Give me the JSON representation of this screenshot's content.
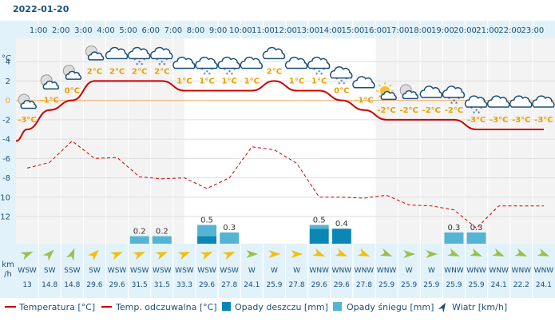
{
  "date": "2022-01-20",
  "hours": [
    "1:00",
    "2:00",
    "3:00",
    "4:00",
    "5:00",
    "6:00",
    "7:00",
    "8:00",
    "9:00",
    "10:00",
    "11:00",
    "12:00",
    "13:00",
    "14:00",
    "15:00",
    "16:00",
    "17:00",
    "18:00",
    "19:00",
    "20:00",
    "21:00",
    "22:00",
    "23:00"
  ],
  "y_unit": "°C",
  "y_ticks": [
    "4",
    "2",
    "0",
    "-2",
    "-4",
    "-6",
    "-8",
    "-10",
    "-12"
  ],
  "wind_unit_line1": "km",
  "wind_unit_line2": "/h",
  "chart_data": {
    "type": "line",
    "ylim": [
      -14.8,
      6.4
    ],
    "temperature": [
      -3,
      -1,
      0,
      2,
      2,
      2,
      2,
      1,
      1,
      1,
      1,
      2,
      1,
      1,
      0,
      -1,
      -2,
      -2,
      -2,
      -2,
      -3,
      -3,
      -3,
      -3
    ],
    "feels_like": [
      -7,
      -6.4,
      -4.2,
      -6,
      -5.9,
      -7.9,
      -8.1,
      -8,
      -9.1,
      -8,
      -4.8,
      -5.1,
      -6.5,
      -10,
      -10,
      -10.1,
      -9.8,
      -10.8,
      -10.9,
      -11.3,
      -13.2,
      -10.9,
      -10.9,
      -10.9
    ],
    "temp_labels": [
      "-3°C",
      "-1°C",
      "0°C",
      "2°C",
      "2°C",
      "2°C",
      "2°C",
      "1°C",
      "1°C",
      "1°C",
      "1°C",
      "2°C",
      "1°C",
      "1°C",
      "0°C",
      "-1°C",
      "-2°C",
      "-2°C",
      "-2°C",
      "-2°C",
      "-3°C",
      "-3°C",
      "-3°C",
      "-3°C"
    ],
    "rain": [
      0,
      0,
      0,
      0,
      0,
      0,
      0,
      0,
      0.2,
      0,
      0,
      0,
      0,
      0.4,
      0.4,
      0,
      0,
      0,
      0,
      0,
      0,
      0,
      0,
      0
    ],
    "snow": [
      0,
      0,
      0,
      0,
      0,
      0.2,
      0.2,
      0,
      0.3,
      0.3,
      0,
      0,
      0,
      0.1,
      0,
      0,
      0,
      0,
      0,
      0.3,
      0.3,
      0,
      0,
      0
    ],
    "precip_labels": [
      "",
      "",
      "",
      "",
      "",
      "0.2",
      "0.2",
      "",
      "0.5",
      "0.3",
      "",
      "",
      "",
      "0.5",
      "0.4",
      "",
      "",
      "",
      "",
      "0.3",
      "0.3",
      "",
      "",
      ""
    ],
    "series": [
      {
        "name": "Temperatura [°C]",
        "color": "#cc0000"
      },
      {
        "name": "Temp. odczuwalna [°C]",
        "color": "#cc0000"
      },
      {
        "name": "Opady deszczu [mm]",
        "color": "#0a87b4"
      },
      {
        "name": "Opady śniegu [mm]",
        "color": "#55b4d4"
      },
      {
        "name": "Wiatr [km/h]",
        "color": "#1a4f7a"
      }
    ]
  },
  "weather_icons": [
    "moon-cloud",
    "moon-cloud",
    "moon-cloud",
    "moon-cloud",
    "cloud",
    "cloud-snow",
    "cloud-snow",
    "cloud",
    "cloud-snow",
    "cloud-snow",
    "cloud",
    "cloud",
    "cloud",
    "cloud-snow",
    "cloud-snow",
    "cloud",
    "sun-cloud",
    "moon-cloud",
    "cloud",
    "cloud-snow",
    "cloud-snow",
    "cloud",
    "cloud",
    "cloud"
  ],
  "wind": {
    "dirs": [
      "WSW",
      "SW",
      "SSW",
      "SW",
      "WSW",
      "WSW",
      "WSW",
      "WSW",
      "WSW",
      "WSW",
      "W",
      "W",
      "W",
      "WNW",
      "WNW",
      "WNW",
      "WNW",
      "W",
      "W",
      "WNW",
      "WNW",
      "WNW",
      "WNW",
      "WNW"
    ],
    "speeds": [
      "13",
      "14.8",
      "14.8",
      "29.6",
      "29.6",
      "31.5",
      "31.5",
      "33.3",
      "29.6",
      "27.8",
      "24.1",
      "25.9",
      "27.8",
      "29.6",
      "29.6",
      "27.8",
      "25.9",
      "25.9",
      "25.9",
      "25.9",
      "25.9",
      "24.1",
      "22.2",
      "24.1"
    ],
    "colors": [
      "#9ac04a",
      "#9ac04a",
      "#9ac04a",
      "#f0c010",
      "#f0c010",
      "#f0c010",
      "#f0c010",
      "#f0c010",
      "#f0c010",
      "#f0c010",
      "#9ac04a",
      "#f0c010",
      "#f0c010",
      "#f0c010",
      "#f0c010",
      "#f0c010",
      "#9ac04a",
      "#9ac04a",
      "#9ac04a",
      "#9ac04a",
      "#9ac04a",
      "#9ac04a",
      "#9ac04a",
      "#9ac04a"
    ]
  },
  "legend": {
    "temperature": "Temperatura [°C]",
    "feels_like": "Temp. odczuwalna [°C]",
    "rain": "Opady deszczu [mm]",
    "snow": "Opady śniegu [mm]",
    "wind": "Wiatr [km/h]"
  }
}
